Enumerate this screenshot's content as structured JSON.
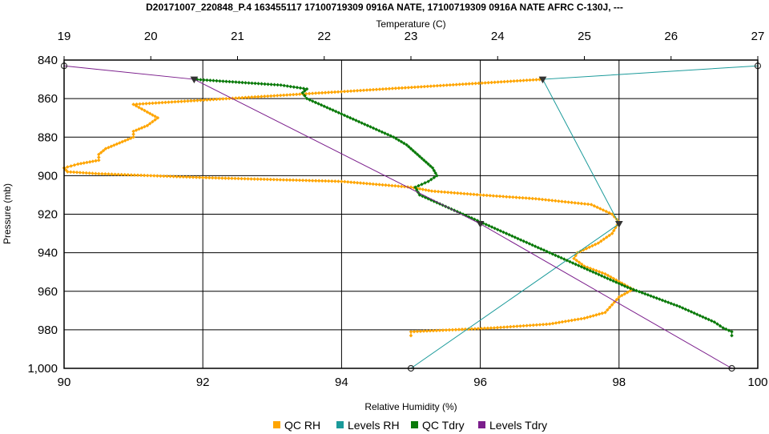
{
  "chart_data": {
    "type": "line",
    "title": "D20171007_220848_P.4 163455117 17100719309 0916A NATE, 17100719309 0916A NATE AFRC C-130J, ---",
    "top_axis": {
      "label": "Temperature (C)",
      "range": [
        19,
        27
      ],
      "ticks": [
        "19",
        "20",
        "21",
        "22",
        "23",
        "24",
        "25",
        "26",
        "27"
      ]
    },
    "bottom_axis": {
      "label": "Relative Humidity (%)",
      "range": [
        90,
        100
      ],
      "ticks": [
        "90",
        "92",
        "94",
        "96",
        "98",
        "100"
      ]
    },
    "y_axis": {
      "label": "Pressure (mb)",
      "range": [
        840,
        1000
      ],
      "inverted": true,
      "ticks": [
        "840",
        "860",
        "880",
        "900",
        "920",
        "940",
        "960",
        "980",
        "1,000"
      ]
    },
    "grid": true,
    "legend_position": "bottom",
    "series": [
      {
        "name": "QC RH",
        "color": "#FFA500",
        "axis": "rh",
        "marker": "small-diamond",
        "points": [
          [
            96.9,
            850
          ],
          [
            91.0,
            863
          ],
          [
            91.2,
            867
          ],
          [
            91.35,
            870
          ],
          [
            91.2,
            874
          ],
          [
            91.0,
            877
          ],
          [
            91.0,
            880
          ],
          [
            90.8,
            883
          ],
          [
            90.6,
            886
          ],
          [
            90.5,
            889
          ],
          [
            90.5,
            892
          ],
          [
            90.2,
            894
          ],
          [
            90.0,
            896
          ],
          [
            90.05,
            898
          ],
          [
            90.5,
            899
          ],
          [
            92.0,
            901
          ],
          [
            94.0,
            903
          ],
          [
            95.0,
            906
          ],
          [
            95.3,
            908
          ],
          [
            96.0,
            910
          ],
          [
            96.8,
            912
          ],
          [
            97.6,
            915
          ],
          [
            97.9,
            920
          ],
          [
            98.0,
            924
          ],
          [
            97.9,
            930
          ],
          [
            97.7,
            935
          ],
          [
            97.4,
            940
          ],
          [
            97.35,
            943
          ],
          [
            97.5,
            947
          ],
          [
            97.8,
            951
          ],
          [
            98.0,
            955
          ],
          [
            98.2,
            959
          ],
          [
            98.0,
            963
          ],
          [
            97.9,
            967
          ],
          [
            97.8,
            971
          ],
          [
            97.5,
            974
          ],
          [
            97.0,
            977
          ],
          [
            96.2,
            979
          ],
          [
            95.0,
            981
          ],
          [
            95.0,
            983
          ]
        ]
      },
      {
        "name": "Levels RH",
        "color": "#1A9A9A",
        "axis": "rh",
        "marker": "circle-triangle",
        "points": [
          [
            100,
            843
          ],
          [
            96.9,
            850
          ],
          [
            98.0,
            925
          ],
          [
            95.0,
            1000
          ]
        ]
      },
      {
        "name": "QC Tdry",
        "color": "#0A7A0A",
        "axis": "temp",
        "marker": "small-diamond",
        "points": [
          [
            20.5,
            850
          ],
          [
            21.5,
            853
          ],
          [
            21.8,
            855
          ],
          [
            21.75,
            857
          ],
          [
            21.8,
            860
          ],
          [
            22.0,
            864
          ],
          [
            22.2,
            868
          ],
          [
            22.4,
            872
          ],
          [
            22.6,
            876
          ],
          [
            22.8,
            880
          ],
          [
            22.95,
            884
          ],
          [
            23.05,
            888
          ],
          [
            23.15,
            892
          ],
          [
            23.25,
            896
          ],
          [
            23.3,
            900
          ],
          [
            23.2,
            903
          ],
          [
            23.05,
            906
          ],
          [
            23.1,
            910
          ],
          [
            23.3,
            914
          ],
          [
            23.5,
            918
          ],
          [
            23.7,
            922
          ],
          [
            23.9,
            926
          ],
          [
            24.1,
            930
          ],
          [
            24.3,
            934
          ],
          [
            24.5,
            938
          ],
          [
            24.7,
            942
          ],
          [
            24.9,
            946
          ],
          [
            25.1,
            950
          ],
          [
            25.3,
            954
          ],
          [
            25.5,
            958
          ],
          [
            25.8,
            963
          ],
          [
            26.1,
            968
          ],
          [
            26.3,
            972
          ],
          [
            26.5,
            976
          ],
          [
            26.6,
            979
          ],
          [
            26.7,
            981
          ],
          [
            26.7,
            983
          ]
        ]
      },
      {
        "name": "Levels Tdry",
        "color": "#7B1E8C",
        "axis": "temp",
        "marker": "circle-triangle",
        "points": [
          [
            19,
            843
          ],
          [
            20.5,
            850
          ],
          [
            23.8,
            925
          ],
          [
            26.7,
            1000
          ]
        ]
      }
    ]
  }
}
